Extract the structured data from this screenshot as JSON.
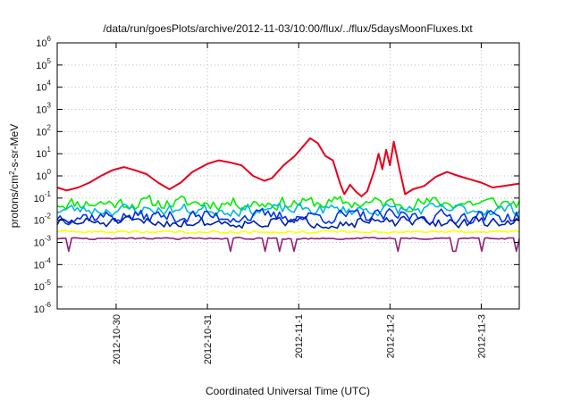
{
  "chart_data": {
    "type": "line",
    "title": "/data/run/goesPlots/archive/2012-11-03/10:00/flux/../flux/5daysMoonFluxes.txt",
    "xlabel": "Coordinated Universal Time (UTC)",
    "ylabel_parts": {
      "pre": "protons/cm",
      "sup": "2",
      "post": "-s-sr-MeV"
    },
    "y_scale": "log",
    "ylim": [
      1e-06,
      1000000.0
    ],
    "y_ticks": [
      {
        "value": 1e-06,
        "base": "10",
        "exp": "-6"
      },
      {
        "value": 1e-05,
        "base": "10",
        "exp": "-5"
      },
      {
        "value": 0.0001,
        "base": "10",
        "exp": "-4"
      },
      {
        "value": 0.001,
        "base": "10",
        "exp": "-3"
      },
      {
        "value": 0.01,
        "base": "10",
        "exp": "-2"
      },
      {
        "value": 0.1,
        "base": "10",
        "exp": "-1"
      },
      {
        "value": 1,
        "base": "10",
        "exp": "0"
      },
      {
        "value": 10,
        "base": "10",
        "exp": "1"
      },
      {
        "value": 100,
        "base": "10",
        "exp": "2"
      },
      {
        "value": 1000,
        "base": "10",
        "exp": "3"
      },
      {
        "value": 10000,
        "base": "10",
        "exp": "4"
      },
      {
        "value": 100000,
        "base": "10",
        "exp": "5"
      },
      {
        "value": 1000000,
        "base": "10",
        "exp": "6"
      }
    ],
    "xlim": [
      "2012-10-29T08:30",
      "2012-11-03T10:00"
    ],
    "x_ticks": [
      {
        "value": "2012-10-30T00:00",
        "label": "2012-10-30"
      },
      {
        "value": "2012-10-31T00:00",
        "label": "2012-10-31"
      },
      {
        "value": "2012-11-01T00:00",
        "label": "2012-11-1"
      },
      {
        "value": "2012-11-02T00:00",
        "label": "2012-11-2"
      },
      {
        "value": "2012-11-03T00:00",
        "label": "2012-11-3"
      }
    ],
    "grid": true,
    "series": [
      {
        "color": "#e8001c",
        "points": [
          [
            "2012-10-29T08:30",
            0.3
          ],
          [
            "2012-10-29T11:00",
            0.22
          ],
          [
            "2012-10-29T14:00",
            0.3
          ],
          [
            "2012-10-29T17:00",
            0.5
          ],
          [
            "2012-10-29T20:00",
            1.0
          ],
          [
            "2012-10-29T23:00",
            1.8
          ],
          [
            "2012-10-30T02:00",
            2.5
          ],
          [
            "2012-10-30T05:00",
            1.8
          ],
          [
            "2012-10-30T08:00",
            1.2
          ],
          [
            "2012-10-30T11:00",
            0.5
          ],
          [
            "2012-10-30T14:00",
            0.25
          ],
          [
            "2012-10-30T17:00",
            0.5
          ],
          [
            "2012-10-30T20:00",
            1.5
          ],
          [
            "2012-10-31T00:00",
            3.5
          ],
          [
            "2012-10-31T03:00",
            5.0
          ],
          [
            "2012-10-31T06:00",
            4.0
          ],
          [
            "2012-10-31T09:00",
            3.0
          ],
          [
            "2012-10-31T12:00",
            1.0
          ],
          [
            "2012-10-31T15:00",
            0.6
          ],
          [
            "2012-10-31T17:00",
            0.8
          ],
          [
            "2012-10-31T20:00",
            3.0
          ],
          [
            "2012-10-31T23:00",
            8.0
          ],
          [
            "2012-11-01T01:00",
            20.0
          ],
          [
            "2012-11-01T03:00",
            50.0
          ],
          [
            "2012-11-01T05:00",
            30.0
          ],
          [
            "2012-11-01T07:00",
            8.0
          ],
          [
            "2012-11-01T09:00",
            5.0
          ],
          [
            "2012-11-01T11:00",
            0.4
          ],
          [
            "2012-11-01T12:00",
            0.15
          ],
          [
            "2012-11-01T13:30",
            0.4
          ],
          [
            "2012-11-01T15:00",
            0.2
          ],
          [
            "2012-11-01T16:30",
            0.12
          ],
          [
            "2012-11-01T18:00",
            0.2
          ],
          [
            "2012-11-01T20:00",
            2.0
          ],
          [
            "2012-11-01T21:00",
            10.0
          ],
          [
            "2012-11-01T22:00",
            2.0
          ],
          [
            "2012-11-01T23:00",
            15.0
          ],
          [
            "2012-11-02T00:00",
            3.0
          ],
          [
            "2012-11-02T01:00",
            35.0
          ],
          [
            "2012-11-02T02:30",
            2.0
          ],
          [
            "2012-11-02T04:00",
            0.15
          ],
          [
            "2012-11-02T06:00",
            0.25
          ],
          [
            "2012-11-02T09:00",
            0.35
          ],
          [
            "2012-11-02T12:00",
            0.9
          ],
          [
            "2012-11-02T15:00",
            1.5
          ],
          [
            "2012-11-02T18:00",
            1.0
          ],
          [
            "2012-11-02T21:00",
            0.7
          ],
          [
            "2012-11-03T00:00",
            0.5
          ],
          [
            "2012-11-03T03:00",
            0.3
          ],
          [
            "2012-11-03T06:00",
            0.35
          ],
          [
            "2012-11-03T10:00",
            0.45
          ]
        ]
      },
      {
        "color": "#00ee00",
        "center": 0.06,
        "amplitude": 0.45,
        "seed": 11
      },
      {
        "color": "#00b8d8",
        "center": 0.03,
        "amplitude": 0.4,
        "seed": 23
      },
      {
        "color": "#0033ee",
        "center": 0.015,
        "amplitude": 0.45,
        "seed": 37
      },
      {
        "color": "#0020a8",
        "center": 0.008,
        "amplitude": 0.35,
        "seed": 51
      },
      {
        "color": "#ffff00",
        "center": 0.003,
        "amplitude": 0.08,
        "seed": 63
      },
      {
        "color": "#90207a",
        "center": 0.0015,
        "amplitude": 0.06,
        "dips": 0.0004,
        "seed": 77
      }
    ]
  }
}
